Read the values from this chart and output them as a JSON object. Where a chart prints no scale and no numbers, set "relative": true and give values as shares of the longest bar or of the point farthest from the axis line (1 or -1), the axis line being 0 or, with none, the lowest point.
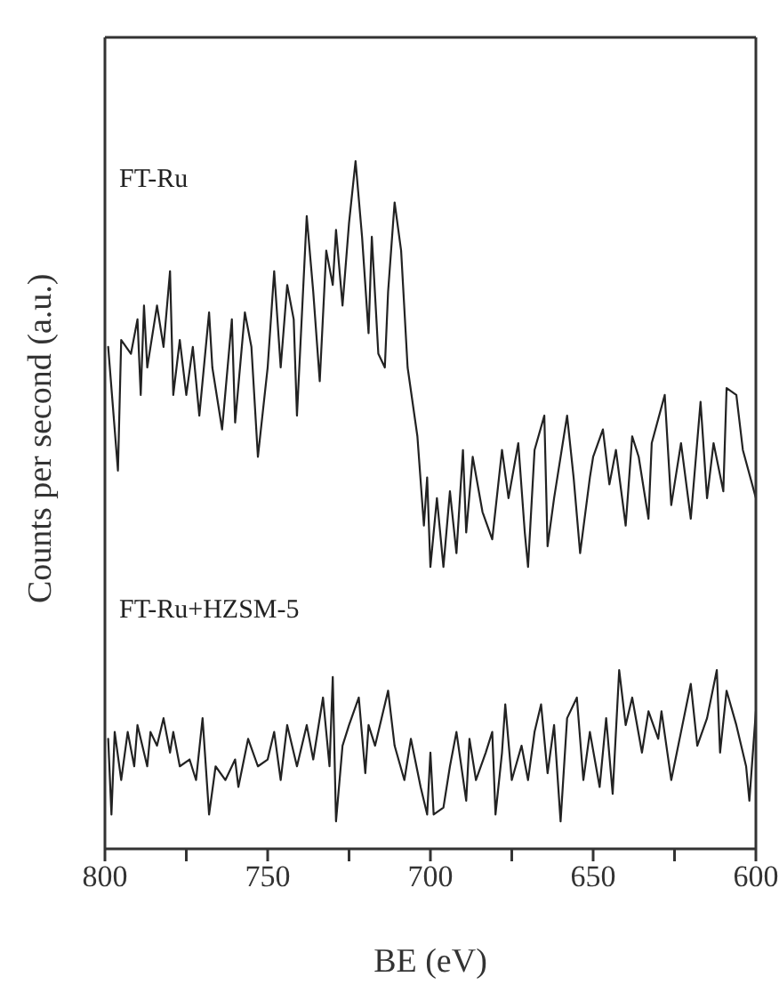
{
  "chart_data": {
    "type": "line",
    "relative": true,
    "xlabel": "BE (eV)",
    "ylabel": "Counts per second (a.u.)",
    "xlim": [
      800,
      600
    ],
    "xticks": [
      800,
      {
        "value": 775,
        "label": null
      },
      750,
      {
        "value": 725,
        "label": null
      },
      700,
      {
        "value": 675,
        "label": null
      },
      650,
      {
        "value": 625,
        "label": null
      },
      600
    ],
    "marker": "none",
    "series": [
      {
        "name": "FT-Ru",
        "color": "#222222",
        "x": [
          799,
          796,
          795,
          792,
          790,
          789,
          788,
          787,
          784,
          782,
          780,
          779,
          777,
          775,
          773,
          771,
          768,
          767,
          764,
          761,
          760,
          757,
          755,
          753,
          750,
          748,
          746,
          744,
          742,
          741,
          738,
          736,
          734,
          732,
          730,
          729,
          727,
          725,
          723,
          721,
          719,
          718,
          716,
          714,
          713,
          711,
          709,
          707,
          704,
          702,
          701,
          700,
          698,
          696,
          694,
          692,
          690,
          689,
          687,
          684,
          681,
          678,
          676,
          673,
          671,
          670,
          668,
          665,
          664,
          662,
          659,
          658,
          656,
          654,
          651,
          650,
          647,
          645,
          643,
          640,
          638,
          636,
          633,
          632,
          628,
          626,
          623,
          620,
          617,
          615,
          613,
          610,
          609,
          606,
          604,
          600
        ],
        "values": [
          0.73,
          0.55,
          0.74,
          0.72,
          0.77,
          0.66,
          0.79,
          0.7,
          0.79,
          0.73,
          0.84,
          0.66,
          0.74,
          0.66,
          0.73,
          0.63,
          0.78,
          0.7,
          0.61,
          0.77,
          0.62,
          0.78,
          0.73,
          0.57,
          0.7,
          0.84,
          0.7,
          0.82,
          0.77,
          0.63,
          0.92,
          0.81,
          0.68,
          0.87,
          0.82,
          0.9,
          0.79,
          0.91,
          1.0,
          0.89,
          0.75,
          0.89,
          0.72,
          0.7,
          0.81,
          0.94,
          0.87,
          0.7,
          0.6,
          0.47,
          0.54,
          0.41,
          0.51,
          0.41,
          0.52,
          0.43,
          0.58,
          0.46,
          0.57,
          0.49,
          0.45,
          0.58,
          0.51,
          0.59,
          0.46,
          0.41,
          0.58,
          0.63,
          0.44,
          0.51,
          0.6,
          0.63,
          0.54,
          0.43,
          0.54,
          0.57,
          0.61,
          0.53,
          0.58,
          0.47,
          0.6,
          0.57,
          0.48,
          0.59,
          0.66,
          0.5,
          0.59,
          0.48,
          0.65,
          0.51,
          0.59,
          0.52,
          0.67,
          0.66,
          0.58,
          0.51
        ]
      },
      {
        "name": "FT-Ru+HZSM-5",
        "color": "#222222",
        "x": [
          799,
          798,
          797,
          795,
          793,
          791,
          790,
          787,
          786,
          784,
          782,
          780,
          779,
          777,
          774,
          772,
          770,
          768,
          766,
          763,
          760,
          759,
          756,
          753,
          750,
          748,
          746,
          744,
          741,
          738,
          736,
          733,
          731,
          730,
          729,
          727,
          725,
          722,
          720,
          719,
          717,
          713,
          711,
          708,
          706,
          703,
          701,
          700,
          699,
          696,
          694,
          692,
          689,
          688,
          686,
          683,
          681,
          680,
          678,
          677,
          675,
          672,
          670,
          668,
          666,
          664,
          662,
          660,
          658,
          655,
          653,
          651,
          648,
          646,
          644,
          642,
          640,
          638,
          635,
          633,
          630,
          629,
          626,
          623,
          620,
          618,
          615,
          612,
          611,
          609,
          606,
          603,
          602,
          600
        ],
        "values": [
          0.16,
          0.05,
          0.17,
          0.1,
          0.17,
          0.12,
          0.18,
          0.12,
          0.17,
          0.15,
          0.19,
          0.14,
          0.17,
          0.12,
          0.13,
          0.1,
          0.19,
          0.05,
          0.12,
          0.1,
          0.13,
          0.09,
          0.16,
          0.12,
          0.13,
          0.17,
          0.1,
          0.18,
          0.12,
          0.18,
          0.13,
          0.22,
          0.12,
          0.25,
          0.04,
          0.15,
          0.18,
          0.22,
          0.11,
          0.18,
          0.15,
          0.23,
          0.15,
          0.1,
          0.16,
          0.09,
          0.05,
          0.14,
          0.05,
          0.06,
          0.12,
          0.17,
          0.07,
          0.16,
          0.1,
          0.14,
          0.17,
          0.05,
          0.14,
          0.21,
          0.1,
          0.15,
          0.1,
          0.17,
          0.21,
          0.11,
          0.18,
          0.04,
          0.19,
          0.22,
          0.1,
          0.17,
          0.09,
          0.19,
          0.08,
          0.26,
          0.18,
          0.22,
          0.14,
          0.2,
          0.16,
          0.2,
          0.1,
          0.17,
          0.24,
          0.15,
          0.19,
          0.26,
          0.14,
          0.23,
          0.18,
          0.12,
          0.07,
          0.2
        ]
      }
    ]
  }
}
